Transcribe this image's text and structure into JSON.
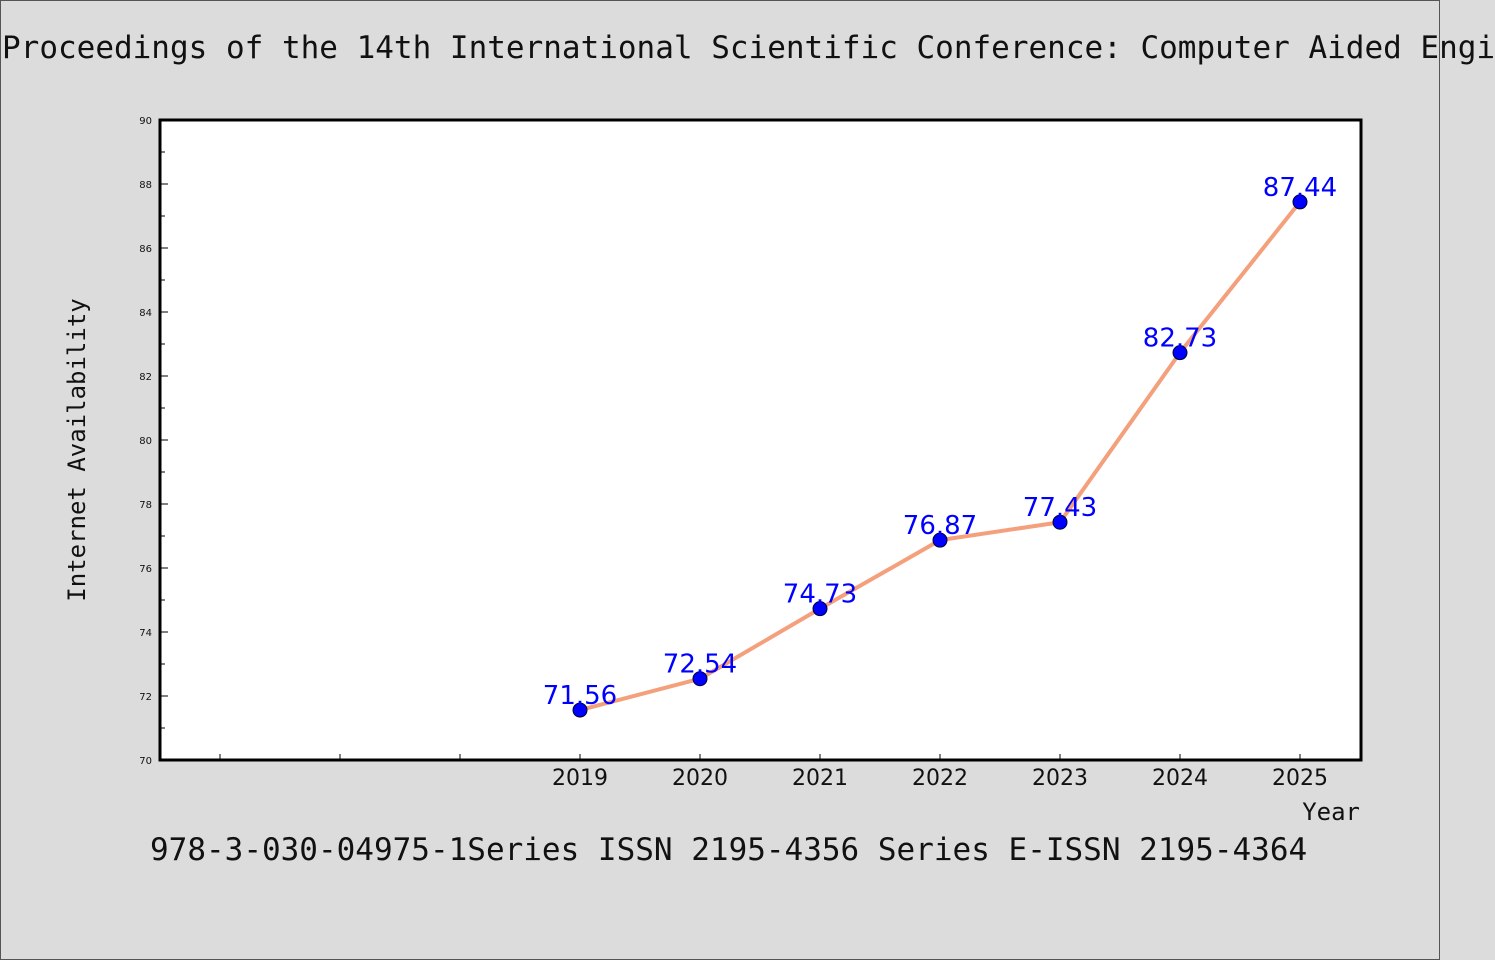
{
  "header": {
    "title": "Proceedings of the 14th International Scientific Conference: Computer Aided Engi"
  },
  "footer": {
    "text": "978-3-030-04975-1Series ISSN 2195-4356 Series E-ISSN 2195-4364"
  },
  "colors": {
    "background": "#dcdcdc",
    "line": "#f4a07c",
    "marker": "#0000ff",
    "data_label": "#0000ff"
  },
  "chart_data": {
    "type": "line",
    "xlabel": "Year",
    "ylabel": "Internet Availability",
    "categories": [
      "",
      "",
      "",
      "2019",
      "2020",
      "2021",
      "2022",
      "2023",
      "2024",
      "2025"
    ],
    "series": [
      {
        "x": [
          "2019",
          "2020",
          "2021",
          "2022",
          "2023",
          "2024",
          "2025"
        ],
        "values": [
          71.56,
          72.54,
          74.73,
          76.87,
          77.43,
          82.73,
          87.44
        ]
      }
    ],
    "ylim": [
      70,
      90
    ],
    "yticks": [
      70,
      72,
      74,
      76,
      78,
      80,
      82,
      84,
      86,
      88,
      90
    ],
    "grid": false,
    "legend": "none"
  }
}
